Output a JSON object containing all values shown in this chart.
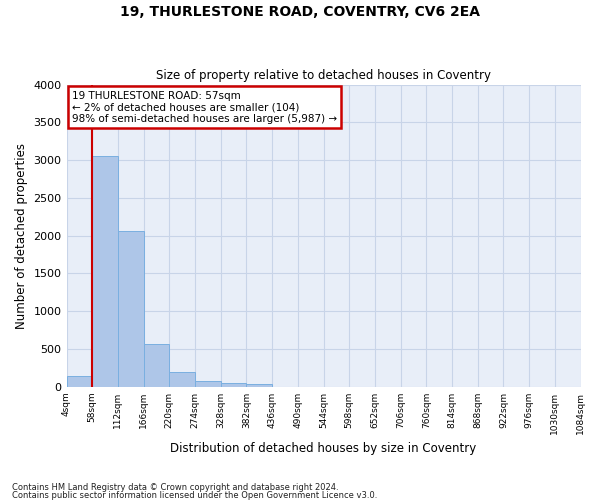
{
  "title": "19, THURLESTONE ROAD, COVENTRY, CV6 2EA",
  "subtitle": "Size of property relative to detached houses in Coventry",
  "xlabel": "Distribution of detached houses by size in Coventry",
  "ylabel": "Number of detached properties",
  "footnote1": "Contains HM Land Registry data © Crown copyright and database right 2024.",
  "footnote2": "Contains public sector information licensed under the Open Government Licence v3.0.",
  "bar_color": "#aec6e8",
  "bar_edge_color": "#7aafe0",
  "grid_color": "#c8d4e8",
  "background_color": "#e8eef8",
  "annotation_box_color": "#cc0000",
  "vline_color": "#cc0000",
  "bin_labels": [
    "4sqm",
    "58sqm",
    "112sqm",
    "166sqm",
    "220sqm",
    "274sqm",
    "328sqm",
    "382sqm",
    "436sqm",
    "490sqm",
    "544sqm",
    "598sqm",
    "652sqm",
    "706sqm",
    "760sqm",
    "814sqm",
    "868sqm",
    "922sqm",
    "976sqm",
    "1030sqm",
    "1084sqm"
  ],
  "bar_heights": [
    140,
    3060,
    2060,
    560,
    200,
    75,
    55,
    40,
    0,
    0,
    0,
    0,
    0,
    0,
    0,
    0,
    0,
    0,
    0,
    0
  ],
  "ylim": [
    0,
    4000
  ],
  "yticks": [
    0,
    500,
    1000,
    1500,
    2000,
    2500,
    3000,
    3500,
    4000
  ],
  "property_label": "19 THURLESTONE ROAD: 57sqm",
  "smaller_pct": "2%",
  "smaller_count": "104",
  "larger_pct": "98%",
  "larger_count": "5,987",
  "vline_x": 1.0
}
